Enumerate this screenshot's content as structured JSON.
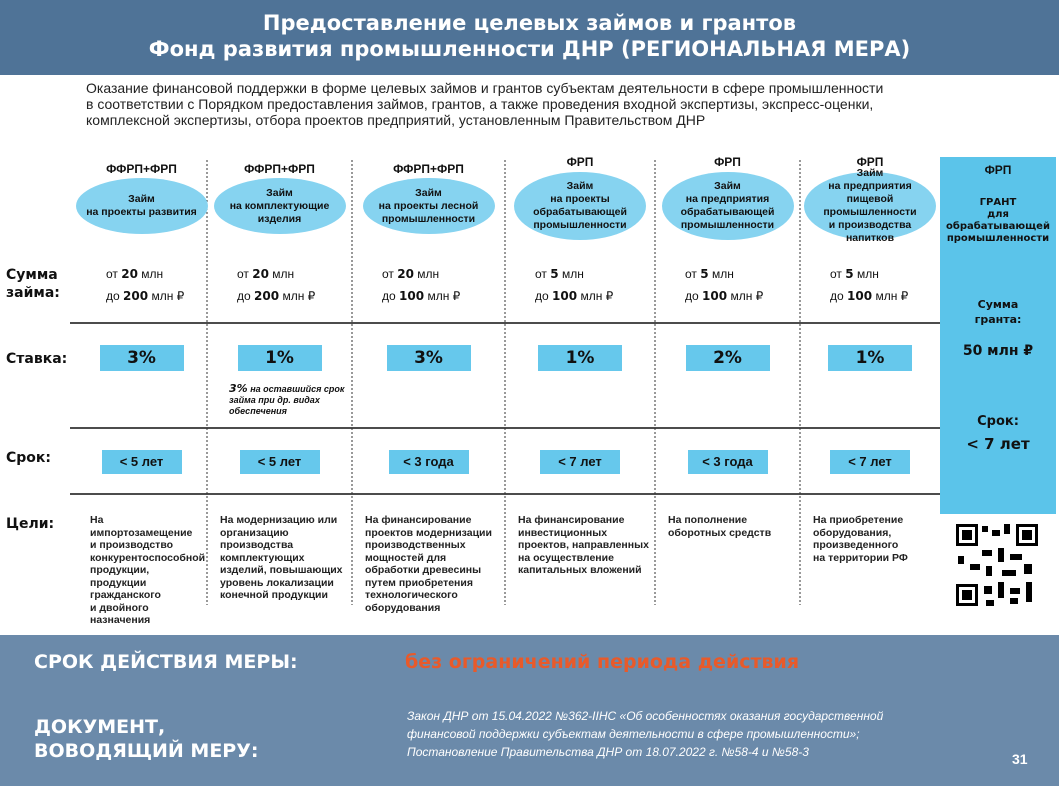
{
  "header": {
    "title_lines": [
      "Предоставление целевых займов и грантов",
      "Фонд развития промышленности ДНР  (РЕГИОНАЛЬНАЯ МЕРА)"
    ]
  },
  "intro": [
    "Оказание финансовой поддержки в форме целевых займов и грантов субъектам деятельности в сфере промышленности",
    "в соответствии с Порядком предоставления займов, грантов, а также проведения входной экспертизы, экспресс-оценки,",
    "комплексной экспертизы, отбора  проектов предприятий, установленным Правительством ДНР"
  ],
  "row_labels": {
    "amount": "Сумма займа:",
    "rate": "Ставка:",
    "term": "Срок:",
    "goals": "Цели:"
  },
  "columns": [
    {
      "fund": "ФФРП+ФРП",
      "loan": [
        "Займ",
        "на проекты развития"
      ],
      "from": {
        "prefix": "от",
        "number": "20",
        "unit": "млн"
      },
      "to": {
        "prefix": "до",
        "number": "200",
        "unit": "млн ₽"
      },
      "rate": "3%",
      "term": "< 5 лет",
      "goal": [
        "На импортозамещение",
        "и производство",
        "конкурентоспособной",
        "продукции, продукции",
        "гражданского",
        "и двойного назначения"
      ]
    },
    {
      "fund": "ФФРП+ФРП",
      "loan": [
        "Займ",
        "на комплектующие",
        "изделия"
      ],
      "from": {
        "prefix": "от",
        "number": "20",
        "unit": "млн"
      },
      "to": {
        "prefix": "до",
        "number": "200",
        "unit": "млн ₽"
      },
      "rate": "1%",
      "rate_note": {
        "bold": "3%",
        "text": [
          "на оставшийся срок",
          "займа при др. видах",
          "обеспечения"
        ]
      },
      "term": "< 5 лет",
      "goal": [
        "На модернизацию или",
        "организацию",
        "производства",
        "комплектующих",
        "изделий, повышающих",
        "уровень локализации",
        "конечной  продукции"
      ]
    },
    {
      "fund": "ФФРП+ФРП",
      "loan": [
        "Займ",
        "на проекты лесной",
        "промышленности"
      ],
      "from": {
        "prefix": "от",
        "number": "20",
        "unit": "млн"
      },
      "to": {
        "prefix": "до",
        "number": "100",
        "unit": "млн ₽"
      },
      "rate": "3%",
      "term": "< 3 года",
      "goal": [
        "На финансирование",
        "проектов модернизации",
        "производственных",
        "мощностей для",
        "обработки древесины",
        "путем приобретения",
        "технологического",
        "оборудования"
      ]
    },
    {
      "fund": "ФРП",
      "loan": [
        "Займ",
        "на проекты",
        "обрабатывающей",
        "промышленности"
      ],
      "from": {
        "prefix": "от",
        "number": "5",
        "unit": "млн"
      },
      "to": {
        "prefix": "до",
        "number": "100",
        "unit": "млн ₽"
      },
      "rate": "1%",
      "term": "< 7 лет",
      "goal": [
        "На финансирование",
        "инвестиционных",
        "проектов, направленных",
        "на осуществление",
        "капитальных вложений"
      ]
    },
    {
      "fund": "ФРП",
      "loan": [
        "Займ",
        "на предприятия",
        "обрабатывающей",
        "промышленности"
      ],
      "from": {
        "prefix": "от",
        "number": "5",
        "unit": "млн"
      },
      "to": {
        "prefix": "до",
        "number": "100",
        "unit": "млн ₽"
      },
      "rate": "2%",
      "term": "< 3 года",
      "goal": [
        "На пополнение",
        "оборотных средств"
      ]
    },
    {
      "fund": "ФРП",
      "loan": [
        "Займ",
        "на предприятия",
        "пищевой промышленности",
        "и производства",
        "напитков"
      ],
      "from": {
        "prefix": "от",
        "number": "5",
        "unit": "млн"
      },
      "to": {
        "prefix": "до",
        "number": "100",
        "unit": "млн ₽"
      },
      "rate": "1%",
      "term": "< 7 лет",
      "goal": [
        "На приобретение",
        "оборудования,",
        "произведенного",
        "на территории РФ"
      ]
    }
  ],
  "grant": {
    "fund": "ФРП",
    "title": [
      "ГРАНТ",
      "для",
      "обрабатывающей",
      "промышленности"
    ],
    "amount_label": [
      "Сумма",
      "гранта:"
    ],
    "amount": "50 млн ₽",
    "term_label": "Срок:",
    "term": "< 7 лет"
  },
  "footer": {
    "validity_label": "СРОК ДЕЙСТВИЯ МЕРЫ:",
    "validity": "без ограничений периода действия",
    "document_label": [
      "ДОКУМЕНТ,",
      "ВОВОДЯЩИЙ МЕРУ:"
    ],
    "document": [
      "Закон ДНР от 15.04.2022 №362-IIНС «Об особенностях оказания государственной",
      "финансовой поддержки субъектам деятельности в сфере промышленности»;",
      "Постановление Правительства ДНР от 18.07.2022 г. №58-4 и №58-3"
    ],
    "page": "31"
  }
}
